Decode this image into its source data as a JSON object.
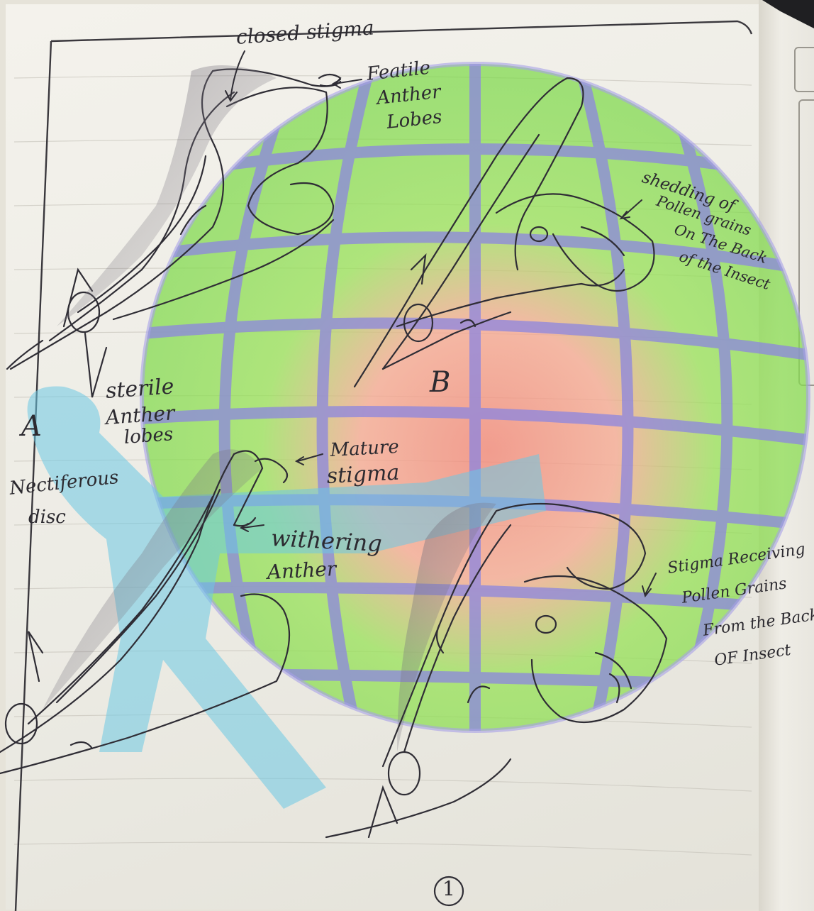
{
  "image": {
    "kind": "photograph",
    "subject": "hand-drawn pencil sketch in a notebook"
  },
  "labels": {
    "closed_stigma": "closed stigma",
    "fertile_1": "Featile",
    "fertile_2": "Anther",
    "fertile_3": "Lobes",
    "shedding_1": "shedding of",
    "shedding_2": "Pollen grains",
    "shedding_3": "On The Back",
    "shedding_4": "of the Insect",
    "sterile_1": "sterile",
    "sterile_2": "Anther",
    "sterile_3": "lobes",
    "letter_a": "A",
    "letter_b": "B",
    "nectiferous_1": "Nectiferous",
    "nectiferous_2": "disc",
    "mature_1": "Mature",
    "mature_2": "stigma",
    "withering_1": "withering",
    "withering_2": "Anther",
    "receiving_1": "Stigma Receiving",
    "receiving_2": "Pollen Grains",
    "receiving_3": "From the Back",
    "receiving_4": "OF Insect",
    "page_number": "1"
  },
  "colors": {
    "paper": "#f1efe8",
    "pencil": "#2c2a30",
    "globe_green": "#7ee04a",
    "globe_red": "#f29a86",
    "globe_grid": "#8c86e0",
    "watermark_cyan": "#6cc8e4"
  }
}
